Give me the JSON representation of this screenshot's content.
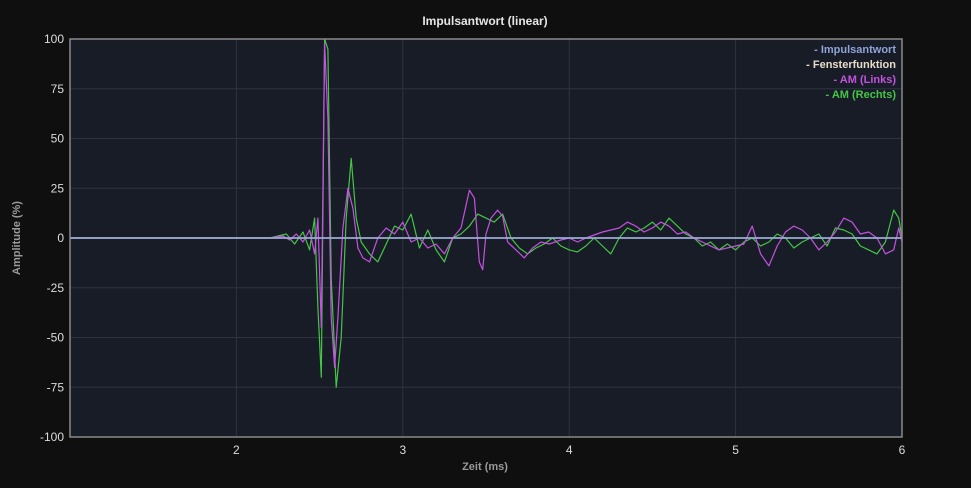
{
  "chart_data": {
    "type": "line",
    "title": "Impulsantwort (linear)",
    "xlabel": "Zeit (ms)",
    "ylabel": "Amplitude (%)",
    "xlim": [
      1.0,
      6.0
    ],
    "ylim": [
      -100,
      100
    ],
    "x_ticks": [
      2,
      3,
      4,
      5,
      6
    ],
    "x_tick_labels": [
      "2",
      "3",
      "4",
      "5",
      "6"
    ],
    "y_ticks": [
      100,
      75,
      50,
      25,
      0,
      -25,
      -50,
      -75,
      -100
    ],
    "y_tick_labels": [
      "100",
      "75",
      "50",
      "25",
      "0",
      "-25",
      "-50",
      "-75",
      "-100"
    ],
    "grid": true,
    "legend_position": "top-right",
    "colors": {
      "background": "#181c27",
      "page": "#0f0f0f",
      "grid": "#2e3340",
      "frame": "#888888"
    },
    "series": [
      {
        "name": "Impulsantwort",
        "legend_label": "- Impulsantwort",
        "color": "#8ea3d6",
        "points": [
          [
            1.0,
            0
          ],
          [
            2.0,
            0
          ],
          [
            2.4,
            0
          ],
          [
            2.5,
            0
          ],
          [
            2.53,
            0
          ],
          [
            3.0,
            0
          ],
          [
            6.0,
            0
          ]
        ]
      },
      {
        "name": "Fensterfunktion",
        "legend_label": "- Fensterfunktion",
        "color": "#e8ddc8",
        "points": [
          [
            1.0,
            0
          ],
          [
            6.0,
            0
          ]
        ]
      },
      {
        "name": "AM (Links)",
        "legend_label": "- AM (Links)",
        "color": "#c452e0",
        "points": [
          [
            1.0,
            0
          ],
          [
            1.5,
            0
          ],
          [
            2.0,
            0
          ],
          [
            2.2,
            0
          ],
          [
            2.28,
            1
          ],
          [
            2.32,
            -1
          ],
          [
            2.36,
            2
          ],
          [
            2.4,
            -2
          ],
          [
            2.44,
            4
          ],
          [
            2.47,
            -8
          ],
          [
            2.49,
            10
          ],
          [
            2.51,
            -45
          ],
          [
            2.53,
            98
          ],
          [
            2.55,
            60
          ],
          [
            2.57,
            -40
          ],
          [
            2.59,
            -65
          ],
          [
            2.61,
            -40
          ],
          [
            2.64,
            5
          ],
          [
            2.67,
            25
          ],
          [
            2.7,
            15
          ],
          [
            2.73,
            -5
          ],
          [
            2.76,
            -10
          ],
          [
            2.8,
            -12
          ],
          [
            2.85,
            0
          ],
          [
            2.9,
            5
          ],
          [
            2.95,
            2
          ],
          [
            3.0,
            8
          ],
          [
            3.05,
            -2
          ],
          [
            3.1,
            0
          ],
          [
            3.15,
            -5
          ],
          [
            3.2,
            -3
          ],
          [
            3.25,
            -8
          ],
          [
            3.3,
            0
          ],
          [
            3.35,
            5
          ],
          [
            3.4,
            24
          ],
          [
            3.43,
            20
          ],
          [
            3.46,
            -12
          ],
          [
            3.48,
            -16
          ],
          [
            3.5,
            2
          ],
          [
            3.53,
            10
          ],
          [
            3.57,
            14
          ],
          [
            3.6,
            11
          ],
          [
            3.63,
            -2
          ],
          [
            3.68,
            -6
          ],
          [
            3.73,
            -10
          ],
          [
            3.78,
            -5
          ],
          [
            3.83,
            -2
          ],
          [
            3.88,
            -3
          ],
          [
            3.95,
            -1
          ],
          [
            4.0,
            0
          ],
          [
            4.05,
            -2
          ],
          [
            4.1,
            0
          ],
          [
            4.2,
            3
          ],
          [
            4.3,
            5
          ],
          [
            4.35,
            8
          ],
          [
            4.4,
            6
          ],
          [
            4.45,
            3
          ],
          [
            4.5,
            5
          ],
          [
            4.55,
            8
          ],
          [
            4.6,
            6
          ],
          [
            4.65,
            2
          ],
          [
            4.7,
            3
          ],
          [
            4.75,
            0
          ],
          [
            4.8,
            -2
          ],
          [
            4.9,
            -6
          ],
          [
            5.0,
            -4
          ],
          [
            5.05,
            -3
          ],
          [
            5.1,
            6
          ],
          [
            5.15,
            -8
          ],
          [
            5.2,
            -14
          ],
          [
            5.25,
            -4
          ],
          [
            5.3,
            3
          ],
          [
            5.35,
            6
          ],
          [
            5.4,
            4
          ],
          [
            5.45,
            0
          ],
          [
            5.5,
            -6
          ],
          [
            5.55,
            -2
          ],
          [
            5.6,
            3
          ],
          [
            5.65,
            10
          ],
          [
            5.7,
            8
          ],
          [
            5.75,
            2
          ],
          [
            5.8,
            3
          ],
          [
            5.85,
            0
          ],
          [
            5.9,
            -8
          ],
          [
            5.95,
            -6
          ],
          [
            5.98,
            5
          ],
          [
            6.0,
            -2
          ]
        ]
      },
      {
        "name": "AM (Rechts)",
        "legend_label": "- AM (Rechts)",
        "color": "#45c545",
        "points": [
          [
            1.0,
            0
          ],
          [
            1.5,
            0
          ],
          [
            2.0,
            0
          ],
          [
            2.2,
            0
          ],
          [
            2.3,
            2
          ],
          [
            2.35,
            -3
          ],
          [
            2.4,
            3
          ],
          [
            2.44,
            -6
          ],
          [
            2.47,
            10
          ],
          [
            2.49,
            -35
          ],
          [
            2.51,
            -70
          ],
          [
            2.53,
            100
          ],
          [
            2.55,
            95
          ],
          [
            2.57,
            -20
          ],
          [
            2.6,
            -75
          ],
          [
            2.63,
            -50
          ],
          [
            2.66,
            10
          ],
          [
            2.69,
            40
          ],
          [
            2.72,
            10
          ],
          [
            2.75,
            -2
          ],
          [
            2.8,
            -8
          ],
          [
            2.85,
            -12
          ],
          [
            2.9,
            -3
          ],
          [
            2.95,
            6
          ],
          [
            3.0,
            4
          ],
          [
            3.05,
            12
          ],
          [
            3.1,
            -5
          ],
          [
            3.15,
            4
          ],
          [
            3.2,
            -6
          ],
          [
            3.25,
            -12
          ],
          [
            3.3,
            0
          ],
          [
            3.35,
            2
          ],
          [
            3.4,
            6
          ],
          [
            3.45,
            12
          ],
          [
            3.5,
            10
          ],
          [
            3.55,
            8
          ],
          [
            3.6,
            12
          ],
          [
            3.65,
            0
          ],
          [
            3.7,
            -5
          ],
          [
            3.75,
            -8
          ],
          [
            3.8,
            -5
          ],
          [
            3.85,
            -3
          ],
          [
            3.9,
            0
          ],
          [
            3.95,
            -4
          ],
          [
            4.0,
            -6
          ],
          [
            4.05,
            -7
          ],
          [
            4.1,
            -4
          ],
          [
            4.15,
            0
          ],
          [
            4.2,
            -4
          ],
          [
            4.25,
            -8
          ],
          [
            4.3,
            0
          ],
          [
            4.35,
            5
          ],
          [
            4.4,
            3
          ],
          [
            4.45,
            5
          ],
          [
            4.5,
            8
          ],
          [
            4.55,
            4
          ],
          [
            4.6,
            10
          ],
          [
            4.65,
            6
          ],
          [
            4.7,
            2
          ],
          [
            4.75,
            0
          ],
          [
            4.8,
            -4
          ],
          [
            4.85,
            -2
          ],
          [
            4.9,
            -6
          ],
          [
            4.95,
            -3
          ],
          [
            5.0,
            -6
          ],
          [
            5.05,
            -2
          ],
          [
            5.1,
            0
          ],
          [
            5.15,
            -4
          ],
          [
            5.2,
            -2
          ],
          [
            5.25,
            2
          ],
          [
            5.3,
            0
          ],
          [
            5.35,
            -5
          ],
          [
            5.4,
            -2
          ],
          [
            5.45,
            0
          ],
          [
            5.5,
            2
          ],
          [
            5.55,
            -4
          ],
          [
            5.6,
            5
          ],
          [
            5.65,
            4
          ],
          [
            5.7,
            2
          ],
          [
            5.75,
            -4
          ],
          [
            5.8,
            -6
          ],
          [
            5.85,
            -8
          ],
          [
            5.9,
            -2
          ],
          [
            5.95,
            14
          ],
          [
            5.98,
            10
          ],
          [
            6.0,
            0
          ]
        ]
      }
    ]
  }
}
